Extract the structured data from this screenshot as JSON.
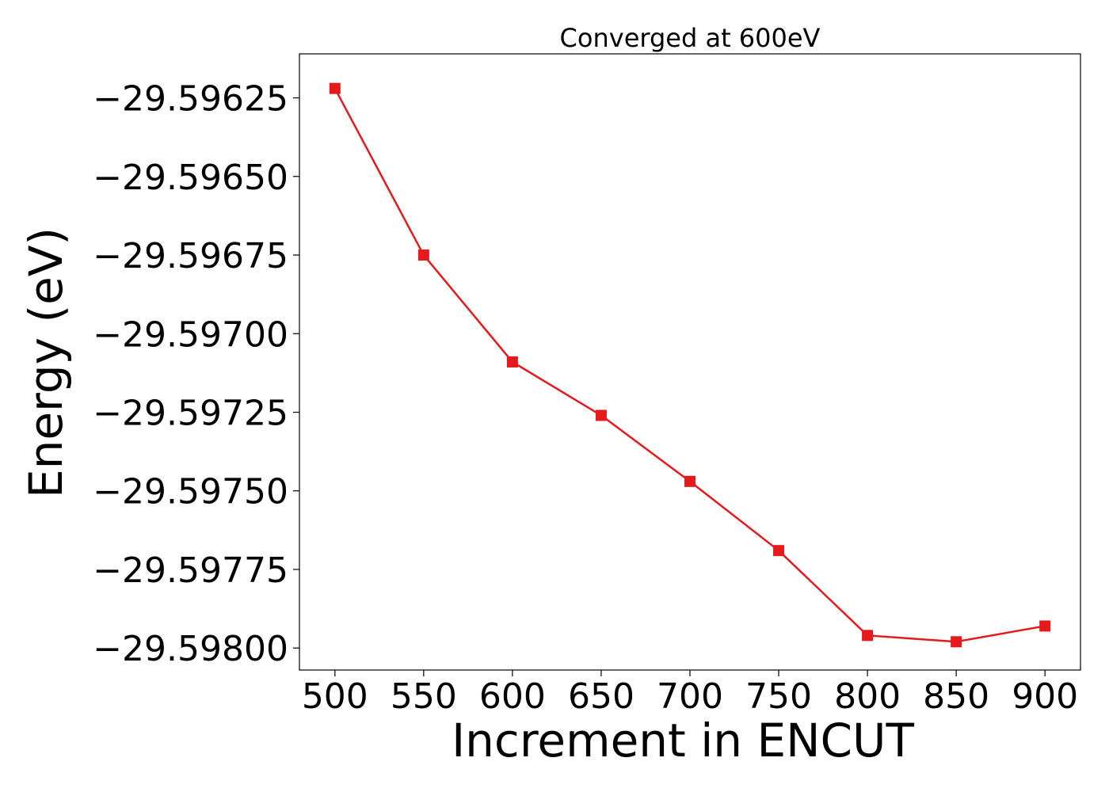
{
  "chart_data": {
    "type": "line",
    "title": "Converged at 600eV",
    "xlabel": "Increment in ENCUT",
    "ylabel": "Energy (eV)",
    "x": [
      500,
      550,
      600,
      650,
      700,
      750,
      800,
      850,
      900
    ],
    "series": [
      {
        "values": [
          -29.59622,
          -29.59675,
          -29.59709,
          -29.59726,
          -29.59747,
          -29.59769,
          -29.59796,
          -29.59798,
          -29.59793
        ],
        "color": "#e41a1c",
        "marker": "square"
      }
    ],
    "xticks": [
      500,
      550,
      600,
      650,
      700,
      750,
      800,
      850,
      900
    ],
    "xtick_labels": [
      "500",
      "550",
      "600",
      "650",
      "700",
      "750",
      "800",
      "850",
      "900"
    ],
    "yticks": [
      -29.59625,
      -29.5965,
      -29.59675,
      -29.597,
      -29.59725,
      -29.5975,
      -29.59775,
      -29.598
    ],
    "ytick_labels": [
      "−29.59625",
      "−29.59650",
      "−29.59675",
      "−29.59700",
      "−29.59725",
      "−29.59750",
      "−29.59775",
      "−29.59800"
    ],
    "xlim": [
      480,
      920
    ],
    "ylim": [
      -29.59807,
      -29.59611
    ],
    "grid": false,
    "legend": "none"
  }
}
